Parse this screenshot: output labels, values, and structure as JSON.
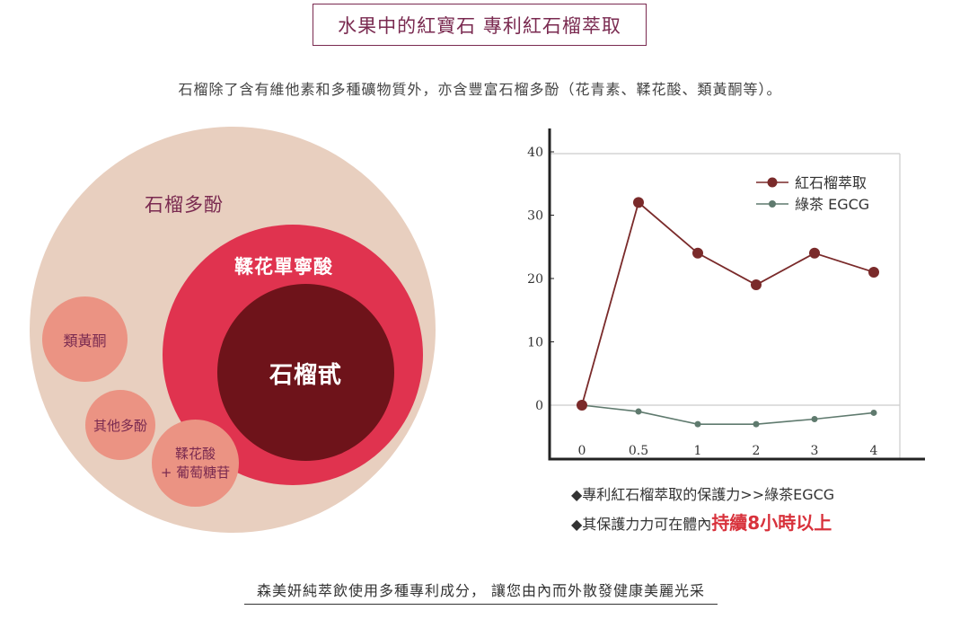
{
  "header": {
    "title": "水果中的紅寶石 專利紅石榴萃取",
    "intro": "石榴除了含有維他素和多種礦物質外，亦含豐富石榴多酚（花青素、鞣花酸、類黃酮等）。"
  },
  "diagram": {
    "outer_label": "石榴多酚",
    "middle_label": "鞣花單寧酸",
    "inner_label": "石榴甙",
    "small1_label": "類黃酮",
    "small2_label": "其他多酚",
    "small3_line1": "鞣花酸",
    "small3_line2": "+ 葡萄糖苷",
    "colors": {
      "outer": "#e8cfbf",
      "middle": "#e0334f",
      "inner": "#6e131a",
      "small": "#eb9383",
      "outer_text": "#7a2a50",
      "small_text": "#7a2a50"
    }
  },
  "chart_data": {
    "type": "line",
    "x": [
      "0",
      "0.5",
      "1",
      "2",
      "3",
      "4"
    ],
    "yticks": [
      0,
      10,
      20,
      30,
      40
    ],
    "ylim": [
      -8,
      43
    ],
    "grid": false,
    "legend_position": "top-right",
    "series": [
      {
        "name": "紅石榴萃取",
        "color": "#7a2a2a",
        "values": [
          0,
          32,
          24,
          19,
          24,
          21
        ]
      },
      {
        "name": "綠茶 EGCG",
        "color": "#5f7a6e",
        "values": [
          0,
          -1,
          -3,
          -3,
          -2.2,
          -1.2
        ]
      }
    ]
  },
  "notes": {
    "line1": "◆專利紅石榴萃取的保護力>>綠茶EGCG",
    "line2_prefix": "◆其保護力力可在體內",
    "line2_highlight": "持續8小時以上"
  },
  "footer": {
    "text": "森美妍純萃飲使用多種專利成分， 讓您由內而外散發健康美麗光采"
  }
}
